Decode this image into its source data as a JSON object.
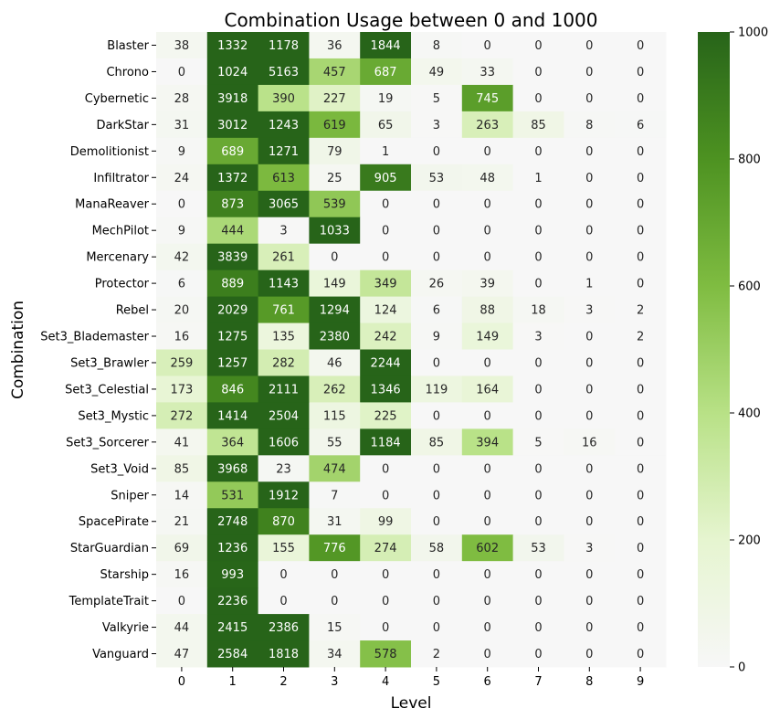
{
  "chart_data": {
    "type": "heatmap",
    "title": "Combination Usage between 0 and 1000",
    "xlabel": "Level",
    "ylabel": "Combination",
    "x": [
      "0",
      "1",
      "2",
      "3",
      "4",
      "5",
      "6",
      "7",
      "8",
      "9"
    ],
    "y": [
      "Blaster",
      "Chrono",
      "Cybernetic",
      "DarkStar",
      "Demolitionist",
      "Infiltrator",
      "ManaReaver",
      "MechPilot",
      "Mercenary",
      "Protector",
      "Rebel",
      "Set3_Blademaster",
      "Set3_Brawler",
      "Set3_Celestial",
      "Set3_Mystic",
      "Set3_Sorcerer",
      "Set3_Void",
      "Sniper",
      "SpacePirate",
      "StarGuardian",
      "Starship",
      "TemplateTrait",
      "Valkyrie",
      "Vanguard"
    ],
    "values": [
      [
        38,
        1332,
        1178,
        36,
        1844,
        8,
        0,
        0,
        0,
        0
      ],
      [
        0,
        1024,
        5163,
        457,
        687,
        49,
        33,
        0,
        0,
        0
      ],
      [
        28,
        3918,
        390,
        227,
        19,
        5,
        745,
        0,
        0,
        0
      ],
      [
        31,
        3012,
        1243,
        619,
        65,
        3,
        263,
        85,
        8,
        6
      ],
      [
        9,
        689,
        1271,
        79,
        1,
        0,
        0,
        0,
        0,
        0
      ],
      [
        24,
        1372,
        613,
        25,
        905,
        53,
        48,
        1,
        0,
        0
      ],
      [
        0,
        873,
        3065,
        539,
        0,
        0,
        0,
        0,
        0,
        0
      ],
      [
        9,
        444,
        3,
        1033,
        0,
        0,
        0,
        0,
        0,
        0
      ],
      [
        42,
        3839,
        261,
        0,
        0,
        0,
        0,
        0,
        0,
        0
      ],
      [
        6,
        889,
        1143,
        149,
        349,
        26,
        39,
        0,
        1,
        0
      ],
      [
        20,
        2029,
        761,
        1294,
        124,
        6,
        88,
        18,
        3,
        2
      ],
      [
        16,
        1275,
        135,
        2380,
        242,
        9,
        149,
        3,
        0,
        2
      ],
      [
        259,
        1257,
        282,
        46,
        2244,
        0,
        0,
        0,
        0,
        0
      ],
      [
        173,
        846,
        2111,
        262,
        1346,
        119,
        164,
        0,
        0,
        0
      ],
      [
        272,
        1414,
        2504,
        115,
        225,
        0,
        0,
        0,
        0,
        0
      ],
      [
        41,
        364,
        1606,
        55,
        1184,
        85,
        394,
        5,
        16,
        0
      ],
      [
        85,
        3968,
        23,
        474,
        0,
        0,
        0,
        0,
        0,
        0
      ],
      [
        14,
        531,
        1912,
        7,
        0,
        0,
        0,
        0,
        0,
        0
      ],
      [
        21,
        2748,
        870,
        31,
        99,
        0,
        0,
        0,
        0,
        0
      ],
      [
        69,
        1236,
        155,
        776,
        274,
        58,
        602,
        53,
        3,
        0
      ],
      [
        16,
        993,
        0,
        0,
        0,
        0,
        0,
        0,
        0,
        0
      ],
      [
        0,
        2236,
        0,
        0,
        0,
        0,
        0,
        0,
        0,
        0
      ],
      [
        44,
        2415,
        2386,
        15,
        0,
        0,
        0,
        0,
        0,
        0
      ],
      [
        47,
        2584,
        1818,
        34,
        578,
        2,
        0,
        0,
        0,
        0
      ]
    ],
    "color_range": [
      0,
      1000
    ],
    "colorbar_ticks": [
      0,
      200,
      400,
      600,
      800,
      1000
    ],
    "colormap": [
      "#f7f7f7",
      "#e6f5d0",
      "#b8e186",
      "#7fbc41",
      "#4d9221",
      "#276419"
    ],
    "annotation_colors": {
      "dark": "#262626",
      "light": "#ffffff"
    },
    "legend": "colorbar right",
    "grid": false
  }
}
